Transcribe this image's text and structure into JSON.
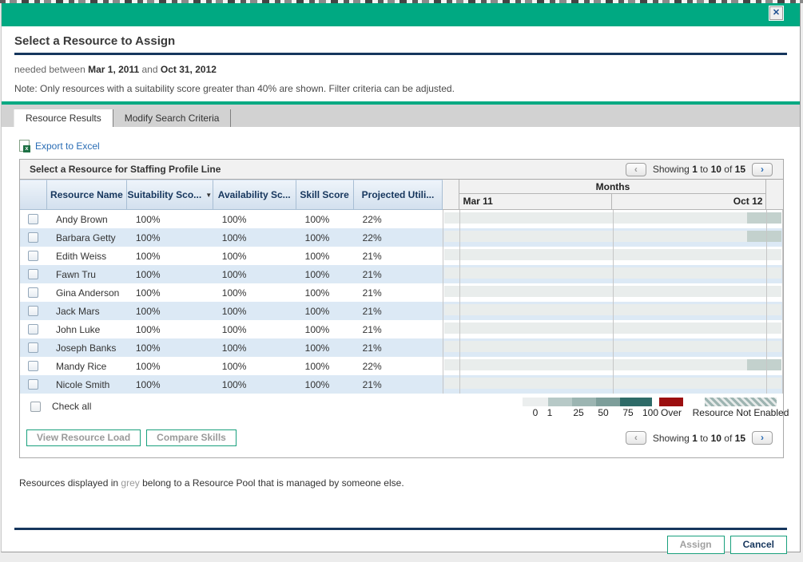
{
  "colors": {
    "accent_teal": "#00A982",
    "navy_rule": "#16365D",
    "link_blue": "#2A6DB5",
    "row_alt": "#DCE9F5",
    "bar": "#E9EDEC",
    "bar_highlight": "#C3D1CD",
    "over_red": "#9C0F10",
    "legend": [
      "#EBEEEE",
      "#B7C9C7",
      "#9CB5B2",
      "#7D9E9A",
      "#2E6B68"
    ]
  },
  "icons": {
    "close": "✕",
    "prev": "‹",
    "next": "›",
    "sort_desc": "▼",
    "excel": "x"
  },
  "dialog": {
    "title": "Select a Resource to Assign"
  },
  "subtitle": {
    "prefix": "needed between",
    "start_date": "Mar 1, 2011",
    "and_word": "and",
    "end_date": "Oct 31, 2012"
  },
  "note": "Note: Only resources with a suitability score greater than 40% are shown. Filter criteria can be adjusted.",
  "tabs": {
    "resource_results": "Resource Results",
    "modify_search": "Modify Search Criteria"
  },
  "export_label": "Export to Excel",
  "panel": {
    "title": "Select a Resource for Staffing Profile Line"
  },
  "pagination": {
    "showing": "Showing",
    "from": "1",
    "to_word": "to",
    "to": "10",
    "of_word": "of",
    "total": "15"
  },
  "table": {
    "columns": {
      "name": "Resource Name",
      "suitability": "Suitability Sco...",
      "availability": "Availability Sc...",
      "skill": "Skill Score",
      "projected": "Projected Utili..."
    },
    "months": {
      "title": "Months",
      "start": "Mar 11",
      "end": "Oct 12"
    },
    "rows": [
      {
        "name": "Andy Brown",
        "suitability": "100%",
        "availability": "100%",
        "skill": "100%",
        "projected": "22%"
      },
      {
        "name": "Barbara Getty",
        "suitability": "100%",
        "availability": "100%",
        "skill": "100%",
        "projected": "22%"
      },
      {
        "name": "Edith Weiss",
        "suitability": "100%",
        "availability": "100%",
        "skill": "100%",
        "projected": "21%"
      },
      {
        "name": "Fawn Tru",
        "suitability": "100%",
        "availability": "100%",
        "skill": "100%",
        "projected": "21%"
      },
      {
        "name": "Gina Anderson",
        "suitability": "100%",
        "availability": "100%",
        "skill": "100%",
        "projected": "21%"
      },
      {
        "name": "Jack Mars",
        "suitability": "100%",
        "availability": "100%",
        "skill": "100%",
        "projected": "21%"
      },
      {
        "name": "John Luke",
        "suitability": "100%",
        "availability": "100%",
        "skill": "100%",
        "projected": "21%"
      },
      {
        "name": "Joseph Banks",
        "suitability": "100%",
        "availability": "100%",
        "skill": "100%",
        "projected": "21%"
      },
      {
        "name": "Mandy Rice",
        "suitability": "100%",
        "availability": "100%",
        "skill": "100%",
        "projected": "22%"
      },
      {
        "name": "Nicole Smith",
        "suitability": "100%",
        "availability": "100%",
        "skill": "100%",
        "projected": "21%"
      }
    ],
    "check_all": "Check all"
  },
  "gantt": {
    "highlight_rows": [
      0,
      1,
      8
    ]
  },
  "legend": {
    "ticks": [
      "0",
      "1",
      "25",
      "50",
      "75",
      "100"
    ],
    "over": "Over",
    "not_enabled": "Resource Not Enabled"
  },
  "buttons": {
    "view_resource_load": "View Resource Load",
    "compare_skills": "Compare Skills",
    "assign": "Assign",
    "cancel": "Cancel"
  },
  "footer_note": {
    "prefix": "Resources displayed in",
    "grey": "grey",
    "suffix": "belong to a Resource Pool that is managed by someone else."
  }
}
